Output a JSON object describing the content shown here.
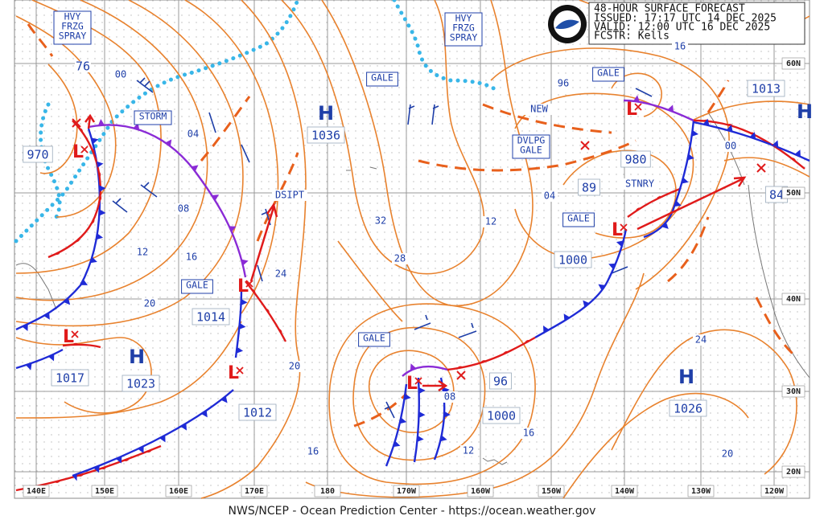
{
  "header": {
    "lines": [
      "48-HOUR SURFACE FORECAST",
      "ISSUED: 17:17 UTC 14 DEC 2025",
      "VALID:  12:00 UTC 16 DEC 2025",
      "FCSTR:  Kells"
    ]
  },
  "warnings": [
    {
      "lines": [
        "HVY",
        "FRZG",
        "SPRAY"
      ]
    },
    {
      "lines": [
        "HVY",
        "FRZG",
        "SPRAY"
      ]
    },
    {
      "lines": [
        "STORM"
      ]
    },
    {
      "lines": [
        "GALE"
      ]
    },
    {
      "lines": [
        "GALE"
      ]
    },
    {
      "lines": [
        "DVLPG",
        "GALE"
      ]
    },
    {
      "lines": [
        "GALE"
      ]
    },
    {
      "lines": [
        "GALE"
      ]
    },
    {
      "lines": [
        "GALE"
      ]
    }
  ],
  "highs": [
    {
      "symbol": "H",
      "pressure": 1036
    },
    {
      "symbol": "H",
      "pressure": 1023
    },
    {
      "symbol": "H",
      "pressure": 1026
    },
    {
      "symbol": "H"
    }
  ],
  "lows": [
    {
      "symbol": "L",
      "pressure": 970
    },
    {
      "symbol": "L",
      "pressure": 1017
    },
    {
      "symbol": "L",
      "pressure": 1014
    },
    {
      "symbol": "L",
      "pressure": 1012
    },
    {
      "symbol": "L",
      "pressure": 1000
    },
    {
      "symbol": "L",
      "pressure": 980
    },
    {
      "symbol": "L",
      "pressure": 1000
    }
  ],
  "pressure_labels": [
    1013,
    96,
    89,
    84
  ],
  "isobar_labels": [
    "76",
    "00",
    "04",
    "08",
    "12",
    "16",
    "20",
    "24",
    "20",
    "16",
    "32",
    "28",
    "96",
    "04",
    "12",
    "00",
    "16",
    "08",
    "12",
    "16",
    "24",
    "20"
  ],
  "front_notes": [
    "DSIPT",
    "NEW",
    "STNRY"
  ],
  "latitude_labels": [
    "60N",
    "50N",
    "40N",
    "30N",
    "20N"
  ],
  "longitude_labels": [
    "140E",
    "150E",
    "160E",
    "170E",
    "180",
    "170W",
    "160W",
    "150W",
    "140W",
    "130W",
    "120W"
  ],
  "footer": "NWS/NCEP - Ocean Prediction Center - https://ocean.weather.gov"
}
